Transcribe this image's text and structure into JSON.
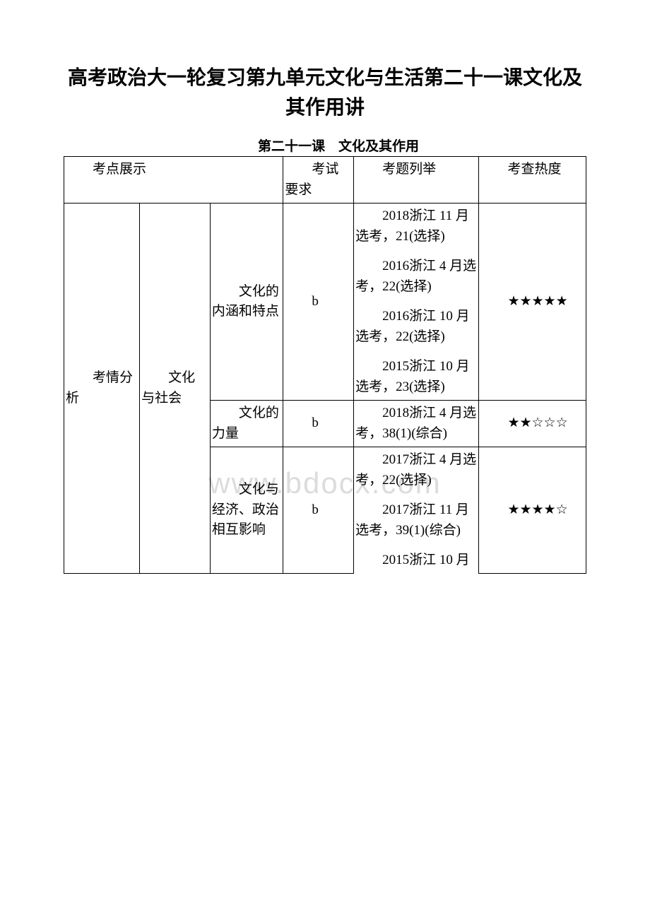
{
  "title": "高考政治大一轮复习第九单元文化与生活第二十一课文化及其作用讲",
  "subtitle": "第二十一课　文化及其作用",
  "watermark": "www.bdocx.com",
  "header": {
    "topics": "考点展示",
    "requirement": "考试要求",
    "examples": "考题列举",
    "heat": "考查热度"
  },
  "leftLabel": "考情分析",
  "groupLabel": "文化与社会",
  "rows": [
    {
      "topic": "文化的内涵和特点",
      "req": "b",
      "exams": [
        "2018浙江 11 月选考，21(选择)",
        "2016浙江 4 月选考，22(选择)",
        "2016浙江 10 月选考，22(选择)",
        "2015浙江 10 月选考，23(选择)"
      ],
      "heat": "★★★★★"
    },
    {
      "topic": "文化的力量",
      "req": "b",
      "exams": [
        "2018浙江 4 月选考，38(1)(综合)"
      ],
      "heat": "★★☆☆☆"
    },
    {
      "topic": "文化与经济、政治相互影响",
      "req": "b",
      "exams": [
        "2017浙江 4 月选考，22(选择)",
        "2017浙江 11 月选考，39(1)(综合)",
        "2015浙江 10 月"
      ],
      "heat": "★★★★☆"
    }
  ]
}
